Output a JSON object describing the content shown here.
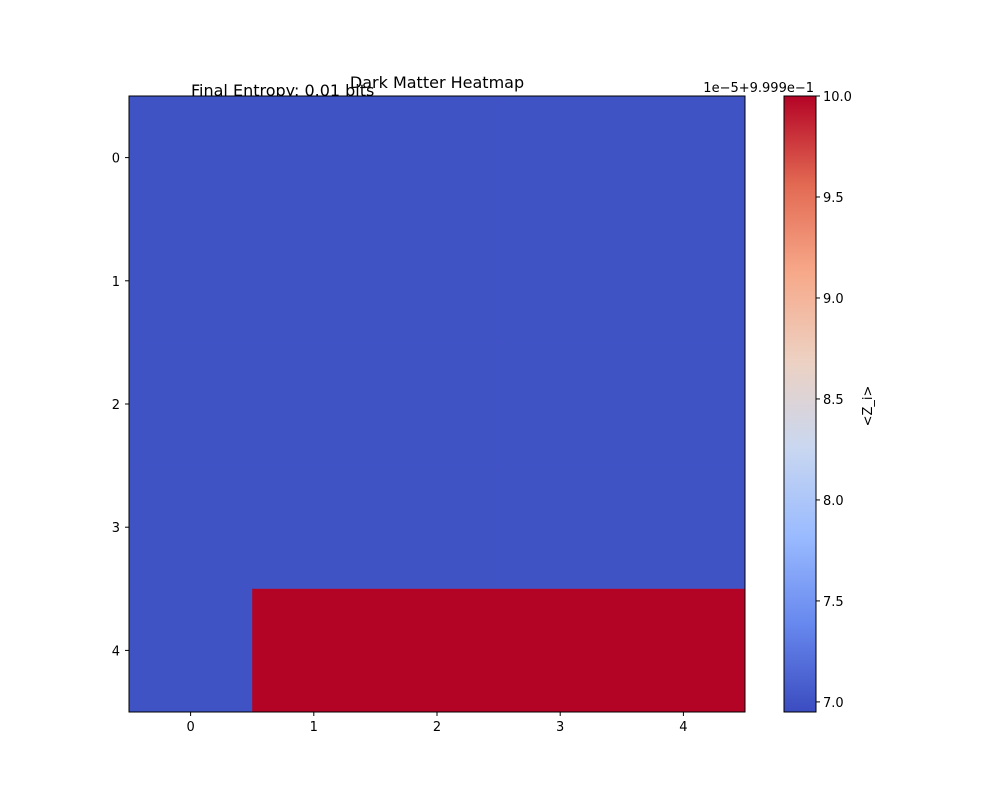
{
  "chart_data": {
    "type": "heatmap",
    "title": "Dark Matter Heatmap",
    "annotation": "Final Entropy: 0.01 bits",
    "xlabel": "",
    "ylabel": "",
    "x_ticks": [
      "0",
      "1",
      "2",
      "3",
      "4"
    ],
    "y_ticks": [
      "0",
      "1",
      "2",
      "3",
      "4"
    ],
    "values": [
      [
        0.99997,
        0.99997,
        0.99997,
        0.99997,
        0.99997
      ],
      [
        0.99997,
        0.99997,
        0.99997,
        0.99997,
        0.99997
      ],
      [
        0.99997,
        0.99997,
        0.99997,
        0.99997,
        0.99997
      ],
      [
        0.99997,
        0.99997,
        0.99997,
        0.99997,
        0.99997
      ],
      [
        0.99997,
        1.0,
        1.0,
        1.0,
        1.0
      ]
    ],
    "colormap": "coolwarm",
    "colorbar": {
      "label": "<Z_i>",
      "offset_text": "1e−5+9.999e−1",
      "range": [
        6.95,
        10.0
      ],
      "ticks": [
        "7.0",
        "7.5",
        "8.0",
        "8.5",
        "9.0",
        "9.5",
        "10.0"
      ],
      "colors": [
        "#3b4cc0",
        "#6788ee",
        "#9abbff",
        "#c9d7f0",
        "#edd1c2",
        "#f7a889",
        "#e26952",
        "#b40426"
      ]
    },
    "grid": false
  }
}
